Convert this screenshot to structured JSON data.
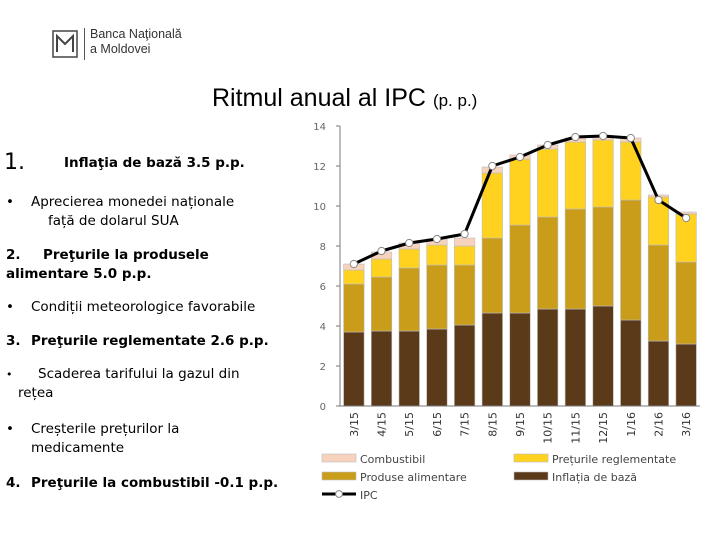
{
  "header": {
    "logo_line1": "Banca Naţională",
    "logo_line2": "a Moldovei",
    "title": "Ritmul anual al IPC",
    "title_unit": "(p. p.)"
  },
  "factors": {
    "f1_num": "1.",
    "f1_label": "Inflaţia de bază 3.5 p.p.",
    "f1_b1_bullet": "•",
    "f1_b1_line1": "Aprecierea monedei naționale",
    "f1_b1_line2": "față de dolarul SUA",
    "f2_num": "2.",
    "f2_label_line1": "Preţurile la produsele",
    "f2_label_line2": "alimentare 5.0 p.p.",
    "f2_b1_bullet": "•",
    "f2_b1": "Condiții meteorologice favorabile",
    "f3_num": "3.",
    "f3_label": "Preţurile reglementate 2.6 p.p.",
    "f3_b1_bullet": "•",
    "f3_b1_line1": "Scaderea tarifului la gazul din",
    "f3_b1_line2": "rețea",
    "f3_b2_bullet": "•",
    "f3_b2_line1": "Creșterile prețurilor la",
    "f3_b2_line2": "medicamente",
    "f4_num": "4.",
    "f4_label": "Preţurile la combustibil -0.1 p.p."
  },
  "colors": {
    "core": "#5b3a1a",
    "food": "#c99c1a",
    "regulated": "#ffd21f",
    "fuel": "#f7d3bd",
    "cpi": "#000000",
    "axis": "#7a7a7a"
  },
  "chart_data": {
    "type": "bar",
    "stacked": true,
    "categories": [
      "3/15",
      "4/15",
      "5/15",
      "6/15",
      "7/15",
      "8/15",
      "9/15",
      "10/15",
      "11/15",
      "12/15",
      "1/16",
      "2/16",
      "3/16"
    ],
    "ylim": [
      0,
      14
    ],
    "yticks": [
      0,
      2,
      4,
      6,
      8,
      10,
      12,
      14
    ],
    "series": [
      {
        "name": "Inflația de bază",
        "key": "core",
        "values": [
          3.7,
          3.75,
          3.75,
          3.85,
          4.05,
          4.65,
          4.65,
          4.85,
          4.85,
          5.0,
          4.3,
          3.25,
          3.1
        ]
      },
      {
        "name": "Produse alimentare",
        "key": "food",
        "values": [
          2.4,
          2.7,
          3.15,
          3.2,
          3.0,
          3.75,
          4.4,
          4.6,
          5.0,
          4.95,
          6.0,
          4.8,
          4.1
        ]
      },
      {
        "name": "Prețurile reglementate",
        "key": "regulated",
        "values": [
          0.7,
          0.9,
          0.95,
          1.0,
          0.95,
          3.25,
          3.3,
          3.4,
          3.35,
          3.35,
          2.9,
          2.4,
          2.4
        ]
      },
      {
        "name": "Combustibil",
        "key": "fuel",
        "values": [
          0.3,
          0.35,
          0.3,
          0.3,
          0.4,
          0.3,
          0.2,
          0.2,
          0.2,
          0.2,
          0.2,
          0.1,
          0.1
        ]
      }
    ],
    "line": {
      "name": "IPC",
      "key": "cpi",
      "values": [
        7.1,
        7.75,
        8.15,
        8.35,
        8.6,
        12.0,
        12.45,
        13.05,
        13.45,
        13.5,
        13.4,
        10.3,
        9.4
      ]
    },
    "legend": [
      {
        "label": "Combustibil",
        "key": "fuel",
        "kind": "bar"
      },
      {
        "label": "Prețurile reglementate",
        "key": "regulated",
        "kind": "bar"
      },
      {
        "label": "Produse alimentare",
        "key": "food",
        "kind": "bar"
      },
      {
        "label": "Inflația de bază",
        "key": "core",
        "kind": "bar"
      },
      {
        "label": "IPC",
        "key": "cpi",
        "kind": "line"
      }
    ],
    "legend_placement": "bottom",
    "grid": false
  }
}
